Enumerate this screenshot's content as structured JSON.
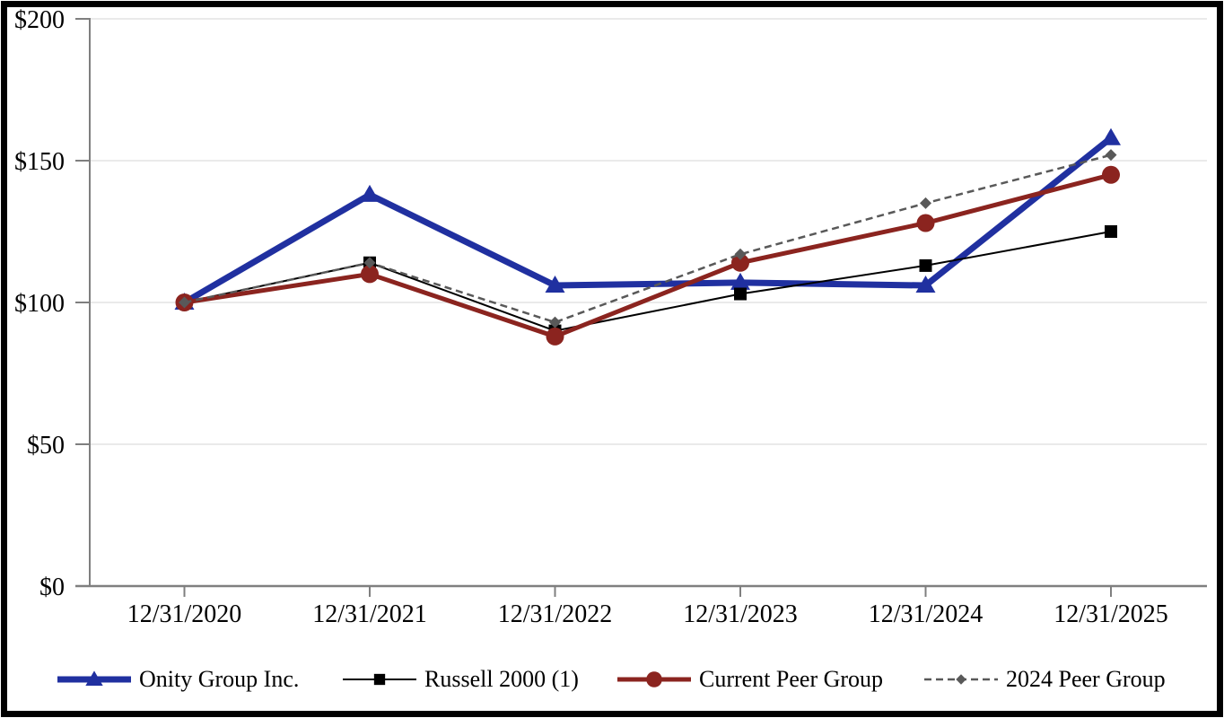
{
  "chart_data": {
    "type": "line",
    "title": "",
    "categories": [
      "12/31/2020",
      "12/31/2021",
      "12/31/2022",
      "12/31/2023",
      "12/31/2024",
      "12/31/2025"
    ],
    "series": [
      {
        "name": "Onity Group Inc.",
        "values": [
          100,
          138,
          106,
          107,
          106,
          158
        ],
        "color": "#2030A0",
        "marker": "triangle",
        "line_width": 7,
        "dash": "solid"
      },
      {
        "name": "Russell 2000 (1)",
        "values": [
          100,
          114,
          90,
          103,
          113,
          125
        ],
        "color": "#000000",
        "marker": "square",
        "line_width": 2,
        "dash": "solid"
      },
      {
        "name": "Current Peer Group",
        "values": [
          100,
          110,
          88,
          114,
          128,
          145
        ],
        "color": "#8B241F",
        "marker": "circle",
        "line_width": 5,
        "dash": "solid"
      },
      {
        "name": "2024 Peer Group",
        "values": [
          100,
          114,
          93,
          117,
          135,
          152
        ],
        "color": "#595959",
        "marker": "diamond",
        "line_width": 2.5,
        "dash": "dashed"
      }
    ],
    "y_axis": {
      "tick_labels": [
        "$0",
        "$50",
        "$100",
        "$150",
        "$200"
      ],
      "tick_values": [
        0,
        50,
        100,
        150,
        200
      ]
    },
    "ylim": [
      0,
      200
    ],
    "grid": true,
    "legend_position": "bottom",
    "styles": {
      "grid_color": "#E4E4E4",
      "axis_color": "#7F7F7F",
      "text_color": "#000000",
      "background": "#FFFFFF",
      "frame_border_color": "#000000"
    }
  }
}
